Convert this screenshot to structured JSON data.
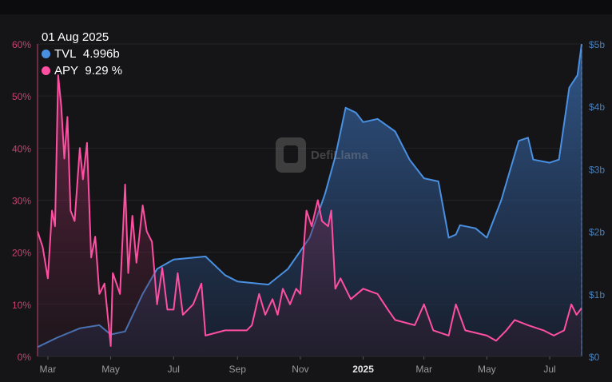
{
  "tooltip": {
    "date": "01 Aug 2025",
    "tvl_label": "TVL",
    "tvl_value": "4.996b",
    "apy_label": "APY",
    "apy_value": "9.29 %"
  },
  "watermark": "DefiLlama",
  "colors": {
    "tvl": "#4a90e2",
    "apy": "#ff4fa3",
    "apy_axis": "#c2456e",
    "tvl_axis": "#4a7fb8",
    "background": "#151517"
  },
  "chart_data": {
    "type": "area",
    "title": "",
    "x_ticks": [
      "Mar",
      "May",
      "Jul",
      "Sep",
      "Nov",
      "2025",
      "Mar",
      "May",
      "Jul"
    ],
    "x_tick_dates": [
      "2024-03-01",
      "2024-05-01",
      "2024-07-01",
      "2024-09-01",
      "2024-11-01",
      "2025-01-01",
      "2025-03-01",
      "2025-05-01",
      "2025-07-01"
    ],
    "x_range": [
      "2024-02-20",
      "2025-08-01"
    ],
    "y_left": {
      "label": "APY",
      "ticks": [
        "0%",
        "10%",
        "20%",
        "30%",
        "40%",
        "50%",
        "60%"
      ],
      "range": [
        0,
        60
      ]
    },
    "y_right": {
      "label": "TVL",
      "ticks": [
        "$0",
        "$1b",
        "$2b",
        "$3b",
        "$4b",
        "$5b"
      ],
      "range": [
        0,
        5
      ]
    },
    "series": [
      {
        "name": "TVL",
        "axis": "right",
        "unit": "billion USD",
        "points": [
          [
            "2024-02-20",
            0.15
          ],
          [
            "2024-03-10",
            0.3
          ],
          [
            "2024-04-01",
            0.45
          ],
          [
            "2024-04-20",
            0.5
          ],
          [
            "2024-05-01",
            0.35
          ],
          [
            "2024-05-15",
            0.4
          ],
          [
            "2024-06-01",
            1.0
          ],
          [
            "2024-06-15",
            1.4
          ],
          [
            "2024-07-01",
            1.55
          ],
          [
            "2024-08-01",
            1.6
          ],
          [
            "2024-08-20",
            1.3
          ],
          [
            "2024-09-01",
            1.2
          ],
          [
            "2024-10-01",
            1.15
          ],
          [
            "2024-10-20",
            1.4
          ],
          [
            "2024-11-10",
            1.9
          ],
          [
            "2024-11-25",
            2.6
          ],
          [
            "2024-12-05",
            3.2
          ],
          [
            "2024-12-15",
            3.98
          ],
          [
            "2024-12-25",
            3.9
          ],
          [
            "2025-01-01",
            3.75
          ],
          [
            "2025-01-15",
            3.8
          ],
          [
            "2025-02-01",
            3.6
          ],
          [
            "2025-02-15",
            3.15
          ],
          [
            "2025-03-01",
            2.85
          ],
          [
            "2025-03-15",
            2.8
          ],
          [
            "2025-03-25",
            1.9
          ],
          [
            "2025-04-01",
            1.95
          ],
          [
            "2025-04-05",
            2.1
          ],
          [
            "2025-04-20",
            2.05
          ],
          [
            "2025-05-01",
            1.9
          ],
          [
            "2025-05-15",
            2.5
          ],
          [
            "2025-06-01",
            3.45
          ],
          [
            "2025-06-10",
            3.5
          ],
          [
            "2025-06-15",
            3.15
          ],
          [
            "2025-07-01",
            3.1
          ],
          [
            "2025-07-10",
            3.15
          ],
          [
            "2025-07-20",
            4.3
          ],
          [
            "2025-07-28",
            4.5
          ],
          [
            "2025-08-01",
            4.996
          ]
        ]
      },
      {
        "name": "APY",
        "axis": "left",
        "unit": "percent",
        "points": [
          [
            "2024-02-20",
            24
          ],
          [
            "2024-02-25",
            21
          ],
          [
            "2024-03-01",
            15
          ],
          [
            "2024-03-05",
            28
          ],
          [
            "2024-03-08",
            25
          ],
          [
            "2024-03-11",
            54
          ],
          [
            "2024-03-14",
            48
          ],
          [
            "2024-03-17",
            38
          ],
          [
            "2024-03-20",
            46
          ],
          [
            "2024-03-23",
            28
          ],
          [
            "2024-03-27",
            26
          ],
          [
            "2024-04-01",
            40
          ],
          [
            "2024-04-04",
            34
          ],
          [
            "2024-04-08",
            41
          ],
          [
            "2024-04-12",
            19
          ],
          [
            "2024-04-16",
            23
          ],
          [
            "2024-04-20",
            12
          ],
          [
            "2024-04-25",
            14
          ],
          [
            "2024-05-01",
            2
          ],
          [
            "2024-05-03",
            16
          ],
          [
            "2024-05-10",
            12
          ],
          [
            "2024-05-15",
            33
          ],
          [
            "2024-05-18",
            16
          ],
          [
            "2024-05-22",
            27
          ],
          [
            "2024-05-26",
            18
          ],
          [
            "2024-06-01",
            29
          ],
          [
            "2024-06-05",
            24
          ],
          [
            "2024-06-10",
            22
          ],
          [
            "2024-06-15",
            10
          ],
          [
            "2024-06-20",
            17
          ],
          [
            "2024-06-25",
            9
          ],
          [
            "2024-07-01",
            9
          ],
          [
            "2024-07-05",
            16
          ],
          [
            "2024-07-10",
            8
          ],
          [
            "2024-07-20",
            10
          ],
          [
            "2024-07-28",
            14
          ],
          [
            "2024-08-01",
            4
          ],
          [
            "2024-08-20",
            5
          ],
          [
            "2024-09-10",
            5
          ],
          [
            "2024-09-15",
            6
          ],
          [
            "2024-09-22",
            12
          ],
          [
            "2024-09-28",
            8
          ],
          [
            "2024-10-05",
            11
          ],
          [
            "2024-10-10",
            8
          ],
          [
            "2024-10-15",
            13
          ],
          [
            "2024-10-22",
            10
          ],
          [
            "2024-10-28",
            13
          ],
          [
            "2024-11-01",
            12
          ],
          [
            "2024-11-07",
            28
          ],
          [
            "2024-11-12",
            25
          ],
          [
            "2024-11-18",
            30
          ],
          [
            "2024-11-22",
            26
          ],
          [
            "2024-11-28",
            25
          ],
          [
            "2024-12-01",
            28
          ],
          [
            "2024-12-05",
            13
          ],
          [
            "2024-12-10",
            15
          ],
          [
            "2024-12-20",
            11
          ],
          [
            "2025-01-01",
            13
          ],
          [
            "2025-01-15",
            12
          ],
          [
            "2025-01-25",
            9
          ],
          [
            "2025-02-01",
            7
          ],
          [
            "2025-02-20",
            6
          ],
          [
            "2025-03-01",
            10
          ],
          [
            "2025-03-10",
            5
          ],
          [
            "2025-03-25",
            4
          ],
          [
            "2025-04-01",
            10
          ],
          [
            "2025-04-10",
            5
          ],
          [
            "2025-05-01",
            4
          ],
          [
            "2025-05-10",
            3
          ],
          [
            "2025-05-20",
            5
          ],
          [
            "2025-05-28",
            7
          ],
          [
            "2025-06-10",
            6
          ],
          [
            "2025-06-25",
            5
          ],
          [
            "2025-07-05",
            4
          ],
          [
            "2025-07-15",
            5
          ],
          [
            "2025-07-22",
            10
          ],
          [
            "2025-07-27",
            8
          ],
          [
            "2025-08-01",
            9.29
          ]
        ]
      }
    ],
    "grid": true,
    "legend": "tooltip top-left"
  }
}
